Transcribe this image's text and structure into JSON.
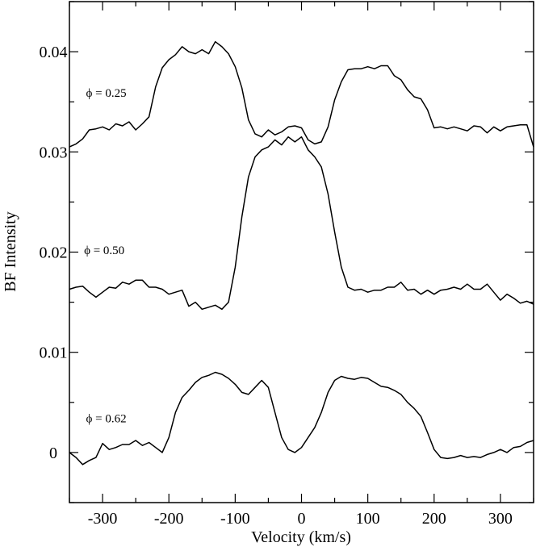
{
  "chart_data": {
    "type": "line",
    "title": "",
    "xlabel": "Velocity (km/s)",
    "ylabel": "BF Intensity",
    "xlim": [
      -350,
      350
    ],
    "ylim": [
      -0.005,
      0.045
    ],
    "x_ticks": [
      -300,
      -200,
      -100,
      0,
      100,
      200,
      300
    ],
    "x_tick_labels": [
      "-300",
      "-200",
      "-100",
      "0",
      "100",
      "200",
      "300"
    ],
    "y_ticks": [
      0,
      0.01,
      0.02,
      0.03,
      0.04
    ],
    "y_tick_labels": [
      "0",
      "0.01",
      "0.02",
      "0.03",
      "0.04"
    ],
    "grid": false,
    "annotations": [
      {
        "text": "ϕ = 0.25",
        "x": -325,
        "y": 0.0355
      },
      {
        "text": "ϕ = 0.50",
        "x": -328,
        "y": 0.0198
      },
      {
        "text": "ϕ = 0.62",
        "x": -325,
        "y": 0.003
      }
    ],
    "series": [
      {
        "x": [
          -350,
          -340,
          -330,
          -320,
          -310,
          -300,
          -290,
          -280,
          -270,
          -260,
          -250,
          -240,
          -230,
          -220,
          -210,
          -200,
          -190,
          -180,
          -170,
          -160,
          -150,
          -140,
          -130,
          -120,
          -110,
          -100,
          -90,
          -80,
          -70,
          -60,
          -50,
          -40,
          -30,
          -20,
          -10,
          0,
          10,
          20,
          30,
          40,
          50,
          60,
          70,
          80,
          90,
          100,
          110,
          120,
          130,
          140,
          150,
          160,
          170,
          180,
          190,
          200,
          210,
          220,
          230,
          240,
          250,
          260,
          270,
          280,
          290,
          300,
          310,
          320,
          330,
          340,
          350
        ],
        "y": [
          0.0305,
          0.0308,
          0.0313,
          0.0322,
          0.0323,
          0.0325,
          0.0322,
          0.0328,
          0.0326,
          0.033,
          0.0322,
          0.0328,
          0.0335,
          0.0365,
          0.0384,
          0.0392,
          0.0397,
          0.0405,
          0.04,
          0.0398,
          0.0402,
          0.0398,
          0.041,
          0.0405,
          0.0398,
          0.0385,
          0.0364,
          0.0332,
          0.0318,
          0.0315,
          0.0322,
          0.0317,
          0.032,
          0.0325,
          0.0326,
          0.0324,
          0.0312,
          0.0308,
          0.031,
          0.0325,
          0.0352,
          0.037,
          0.0382,
          0.0383,
          0.0383,
          0.0385,
          0.0383,
          0.0386,
          0.0386,
          0.0376,
          0.0372,
          0.0362,
          0.0355,
          0.0353,
          0.0342,
          0.0324,
          0.0325,
          0.0323,
          0.0325,
          0.0323,
          0.0321,
          0.0326,
          0.0325,
          0.0319,
          0.0325,
          0.0321,
          0.0325,
          0.0326,
          0.0327,
          0.0327,
          0.0305
        ]
      },
      {
        "x": [
          -350,
          -340,
          -330,
          -320,
          -310,
          -300,
          -290,
          -280,
          -270,
          -260,
          -250,
          -240,
          -230,
          -220,
          -210,
          -200,
          -190,
          -180,
          -170,
          -160,
          -150,
          -140,
          -130,
          -120,
          -110,
          -100,
          -90,
          -80,
          -70,
          -60,
          -50,
          -40,
          -30,
          -20,
          -10,
          0,
          10,
          20,
          30,
          40,
          50,
          60,
          70,
          80,
          90,
          100,
          110,
          120,
          130,
          140,
          150,
          160,
          170,
          180,
          190,
          200,
          210,
          220,
          230,
          240,
          250,
          260,
          270,
          280,
          290,
          300,
          310,
          320,
          330,
          340,
          350
        ],
        "y": [
          0.0163,
          0.0165,
          0.0166,
          0.016,
          0.0155,
          0.016,
          0.0165,
          0.0164,
          0.017,
          0.0168,
          0.0172,
          0.0172,
          0.0165,
          0.0165,
          0.0163,
          0.0158,
          0.016,
          0.0162,
          0.0146,
          0.015,
          0.0143,
          0.0145,
          0.0147,
          0.0143,
          0.015,
          0.0185,
          0.0235,
          0.0275,
          0.0295,
          0.0302,
          0.0305,
          0.0312,
          0.0307,
          0.0315,
          0.031,
          0.0315,
          0.0302,
          0.0295,
          0.0285,
          0.0258,
          0.022,
          0.0185,
          0.0165,
          0.0162,
          0.0163,
          0.016,
          0.0162,
          0.0162,
          0.0165,
          0.0165,
          0.017,
          0.0162,
          0.0163,
          0.0158,
          0.0162,
          0.0158,
          0.0162,
          0.0163,
          0.0165,
          0.0163,
          0.0168,
          0.0163,
          0.0163,
          0.0168,
          0.016,
          0.0152,
          0.0158,
          0.0154,
          0.0149,
          0.0151,
          0.0148
        ]
      },
      {
        "x": [
          -350,
          -340,
          -330,
          -320,
          -310,
          -300,
          -290,
          -280,
          -270,
          -260,
          -250,
          -240,
          -230,
          -220,
          -210,
          -200,
          -190,
          -180,
          -170,
          -160,
          -150,
          -140,
          -130,
          -120,
          -110,
          -100,
          -90,
          -80,
          -70,
          -60,
          -50,
          -40,
          -30,
          -20,
          -10,
          0,
          10,
          20,
          30,
          40,
          50,
          60,
          70,
          80,
          90,
          100,
          110,
          120,
          130,
          140,
          150,
          160,
          170,
          180,
          190,
          200,
          210,
          220,
          230,
          240,
          250,
          260,
          270,
          280,
          290,
          300,
          310,
          320,
          330,
          340,
          350
        ],
        "y": [
          0.0,
          -0.0005,
          -0.0012,
          -0.0008,
          -0.0005,
          0.0009,
          0.0003,
          0.0005,
          0.0008,
          0.0008,
          0.0012,
          0.0007,
          0.001,
          0.0005,
          0.0,
          0.0015,
          0.004,
          0.0055,
          0.0062,
          0.007,
          0.0075,
          0.0077,
          0.008,
          0.0078,
          0.0074,
          0.0068,
          0.006,
          0.0058,
          0.0065,
          0.0072,
          0.0065,
          0.004,
          0.0015,
          0.0003,
          0.0,
          0.0005,
          0.0015,
          0.0025,
          0.004,
          0.006,
          0.0072,
          0.0076,
          0.0074,
          0.0073,
          0.0075,
          0.0074,
          0.007,
          0.0066,
          0.0065,
          0.0062,
          0.0058,
          0.005,
          0.0044,
          0.0036,
          0.002,
          0.0003,
          -0.0005,
          -0.0006,
          -0.0005,
          -0.0003,
          -0.0005,
          -0.0004,
          -0.0005,
          -0.0002,
          0.0,
          0.0003,
          0.0,
          0.0005,
          0.0006,
          0.001,
          0.0012
        ]
      }
    ]
  }
}
